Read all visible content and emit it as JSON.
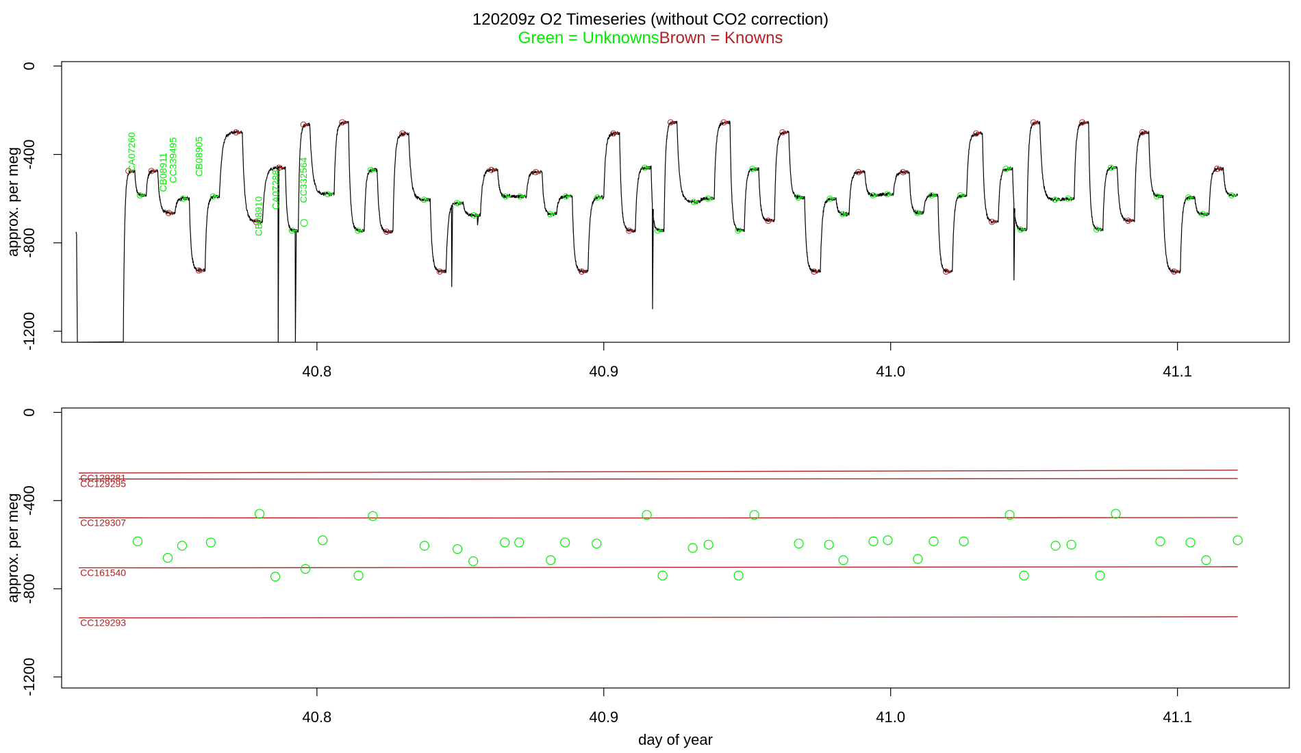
{
  "title": "120209z   O2 Timeseries (without CO2 correction)",
  "subtitle": {
    "unknowns": "Green = Unknowns",
    "knowns": "Brown = Knowns"
  },
  "colors": {
    "unknown": "#00ee00",
    "known": "#b22222",
    "trace": "#000000",
    "axis": "#000000"
  },
  "chart_data": [
    {
      "type": "line",
      "panel": "top",
      "ylabel": "approx. per meg",
      "xlabel": "",
      "xlim": [
        40.711,
        41.139
      ],
      "ylim": [
        -1250,
        20
      ],
      "xticks": [
        40.8,
        40.9,
        41.0,
        41.1
      ],
      "xtick_labels": [
        "40.8",
        "40.9",
        "41.0",
        "41.1"
      ],
      "yticks": [
        0,
        -400,
        -800,
        -1200
      ],
      "ytick_labels": [
        "0",
        "-400",
        "-800",
        "-1200"
      ],
      "segments": [
        {
          "t0": 40.7325,
          "t1": 40.7365,
          "level": -475,
          "kind": "known"
        },
        {
          "t0": 40.7365,
          "t1": 40.7405,
          "level": -585,
          "kind": "unknown"
        },
        {
          "t0": 40.7405,
          "t1": 40.7445,
          "level": -475,
          "kind": "known"
        },
        {
          "t0": 40.7445,
          "t1": 40.7505,
          "level": -665,
          "kind": "known"
        },
        {
          "t0": 40.7505,
          "t1": 40.7555,
          "level": -600,
          "kind": "unknown"
        },
        {
          "t0": 40.7555,
          "t1": 40.761,
          "level": -925,
          "kind": "known"
        },
        {
          "t0": 40.761,
          "t1": 40.766,
          "level": -590,
          "kind": "unknown"
        },
        {
          "t0": 40.766,
          "t1": 40.774,
          "level": -300,
          "kind": "known"
        },
        {
          "t0": 40.774,
          "t1": 40.781,
          "level": -705,
          "kind": "known"
        },
        {
          "t0": 40.781,
          "t1": 40.789,
          "level": -460,
          "kind": "known"
        },
        {
          "t0": 40.789,
          "t1": 40.7935,
          "level": -745,
          "kind": "unknown"
        },
        {
          "t0": 40.7935,
          "t1": 40.7975,
          "level": -265,
          "kind": "known"
        },
        {
          "t0": 40.7975,
          "t1": 40.806,
          "level": -580,
          "kind": "unknown"
        },
        {
          "t0": 40.806,
          "t1": 40.811,
          "level": -255,
          "kind": "known"
        },
        {
          "t0": 40.811,
          "t1": 40.8165,
          "level": -745,
          "kind": "unknown"
        },
        {
          "t0": 40.8165,
          "t1": 40.821,
          "level": -470,
          "kind": "unknown"
        },
        {
          "t0": 40.821,
          "t1": 40.8265,
          "level": -750,
          "kind": "known"
        },
        {
          "t0": 40.8265,
          "t1": 40.832,
          "level": -305,
          "kind": "known"
        },
        {
          "t0": 40.832,
          "t1": 40.8395,
          "level": -605,
          "kind": "unknown"
        },
        {
          "t0": 40.8395,
          "t1": 40.845,
          "level": -930,
          "kind": "known"
        },
        {
          "t0": 40.845,
          "t1": 40.851,
          "level": -620,
          "kind": "unknown"
        },
        {
          "t0": 40.851,
          "t1": 40.857,
          "level": -675,
          "kind": "unknown"
        },
        {
          "t0": 40.857,
          "t1": 40.863,
          "level": -470,
          "kind": "known"
        },
        {
          "t0": 40.863,
          "t1": 40.868,
          "level": -590,
          "kind": "unknown"
        },
        {
          "t0": 40.868,
          "t1": 40.873,
          "level": -590,
          "kind": "unknown"
        },
        {
          "t0": 40.873,
          "t1": 40.8785,
          "level": -480,
          "kind": "known"
        },
        {
          "t0": 40.8785,
          "t1": 40.8835,
          "level": -670,
          "kind": "unknown"
        },
        {
          "t0": 40.8835,
          "t1": 40.889,
          "level": -590,
          "kind": "unknown"
        },
        {
          "t0": 40.889,
          "t1": 40.8945,
          "level": -930,
          "kind": "known"
        },
        {
          "t0": 40.8945,
          "t1": 40.9,
          "level": -595,
          "kind": "unknown"
        },
        {
          "t0": 40.9,
          "t1": 40.9055,
          "level": -305,
          "kind": "known"
        },
        {
          "t0": 40.9055,
          "t1": 40.911,
          "level": -745,
          "kind": "known"
        },
        {
          "t0": 40.911,
          "t1": 40.9165,
          "level": -460,
          "kind": "unknown"
        },
        {
          "t0": 40.9165,
          "t1": 40.921,
          "level": -745,
          "kind": "unknown"
        },
        {
          "t0": 40.921,
          "t1": 40.9255,
          "level": -255,
          "kind": "known"
        },
        {
          "t0": 40.9255,
          "t1": 40.9335,
          "level": -615,
          "kind": "unknown"
        },
        {
          "t0": 40.9335,
          "t1": 40.9385,
          "level": -600,
          "kind": "unknown"
        },
        {
          "t0": 40.9385,
          "t1": 40.944,
          "level": -255,
          "kind": "known"
        },
        {
          "t0": 40.944,
          "t1": 40.949,
          "level": -745,
          "kind": "unknown"
        },
        {
          "t0": 40.949,
          "t1": 40.954,
          "level": -465,
          "kind": "unknown"
        },
        {
          "t0": 40.954,
          "t1": 40.9595,
          "level": -700,
          "kind": "known"
        },
        {
          "t0": 40.9595,
          "t1": 40.9645,
          "level": -300,
          "kind": "known"
        },
        {
          "t0": 40.9645,
          "t1": 40.97,
          "level": -595,
          "kind": "unknown"
        },
        {
          "t0": 40.97,
          "t1": 40.9755,
          "level": -930,
          "kind": "known"
        },
        {
          "t0": 40.9755,
          "t1": 40.981,
          "level": -600,
          "kind": "unknown"
        },
        {
          "t0": 40.981,
          "t1": 40.9855,
          "level": -670,
          "kind": "unknown"
        },
        {
          "t0": 40.9855,
          "t1": 40.991,
          "level": -480,
          "kind": "known"
        },
        {
          "t0": 40.991,
          "t1": 40.996,
          "level": -585,
          "kind": "unknown"
        },
        {
          "t0": 40.996,
          "t1": 41.001,
          "level": -580,
          "kind": "unknown"
        },
        {
          "t0": 41.001,
          "t1": 41.0065,
          "level": -480,
          "kind": "known"
        },
        {
          "t0": 41.0065,
          "t1": 41.0115,
          "level": -665,
          "kind": "unknown"
        },
        {
          "t0": 41.0115,
          "t1": 41.0165,
          "level": -585,
          "kind": "unknown"
        },
        {
          "t0": 41.0165,
          "t1": 41.0215,
          "level": -930,
          "kind": "known"
        },
        {
          "t0": 41.0215,
          "t1": 41.0265,
          "level": -585,
          "kind": "unknown"
        },
        {
          "t0": 41.0265,
          "t1": 41.032,
          "level": -305,
          "kind": "known"
        },
        {
          "t0": 41.032,
          "t1": 41.0375,
          "level": -705,
          "kind": "known"
        },
        {
          "t0": 41.0375,
          "t1": 41.0425,
          "level": -465,
          "kind": "unknown"
        },
        {
          "t0": 41.0425,
          "t1": 41.0475,
          "level": -740,
          "kind": "unknown"
        },
        {
          "t0": 41.0475,
          "t1": 41.052,
          "level": -255,
          "kind": "known"
        },
        {
          "t0": 41.052,
          "t1": 41.0595,
          "level": -605,
          "kind": "unknown"
        },
        {
          "t0": 41.0595,
          "t1": 41.064,
          "level": -600,
          "kind": "unknown"
        },
        {
          "t0": 41.064,
          "t1": 41.069,
          "level": -255,
          "kind": "known"
        },
        {
          "t0": 41.069,
          "t1": 41.074,
          "level": -740,
          "kind": "unknown"
        },
        {
          "t0": 41.074,
          "t1": 41.079,
          "level": -460,
          "kind": "unknown"
        },
        {
          "t0": 41.079,
          "t1": 41.085,
          "level": -700,
          "kind": "known"
        },
        {
          "t0": 41.085,
          "t1": 41.09,
          "level": -300,
          "kind": "known"
        },
        {
          "t0": 41.09,
          "t1": 41.095,
          "level": -590,
          "kind": "unknown"
        },
        {
          "t0": 41.095,
          "t1": 41.101,
          "level": -930,
          "kind": "known"
        },
        {
          "t0": 41.101,
          "t1": 41.106,
          "level": -595,
          "kind": "unknown"
        },
        {
          "t0": 41.106,
          "t1": 41.111,
          "level": -670,
          "kind": "unknown"
        },
        {
          "t0": 41.111,
          "t1": 41.116,
          "level": -465,
          "kind": "known"
        },
        {
          "t0": 41.116,
          "t1": 41.121,
          "level": -585,
          "kind": "unknown"
        }
      ],
      "spikes": [
        {
          "t": 40.7165,
          "level": -1250
        },
        {
          "t": 40.7865,
          "level": -1250
        },
        {
          "t": 40.7925,
          "level": -1250
        },
        {
          "t": 40.847,
          "level": -1000
        },
        {
          "t": 40.856,
          "level": -720
        },
        {
          "t": 40.917,
          "level": -1100
        },
        {
          "t": 41.043,
          "level": -970
        }
      ],
      "sample_labels": [
        {
          "text": "CA07260",
          "x": 40.7365,
          "y": -480
        },
        {
          "text": "CB08911",
          "x": 40.7475,
          "y": -570
        },
        {
          "text": "CC339495",
          "x": 40.751,
          "y": -530
        },
        {
          "text": "CB08905",
          "x": 40.76,
          "y": -500
        },
        {
          "text": "CB08910",
          "x": 40.7808,
          "y": -770
        },
        {
          "text": "CA07288",
          "x": 40.7868,
          "y": -650
        },
        {
          "text": "CC332564",
          "x": 40.7965,
          "y": -620
        }
      ],
      "sample_marker": {
        "x": 40.7955,
        "y": -710
      }
    },
    {
      "type": "scatter",
      "panel": "bottom",
      "ylabel": "approx. per meg",
      "xlabel": "day of year",
      "xlim": [
        40.711,
        41.139
      ],
      "ylim": [
        -1250,
        20
      ],
      "xticks": [
        40.8,
        40.9,
        41.0,
        41.1
      ],
      "xtick_labels": [
        "40.8",
        "40.9",
        "41.0",
        "41.1"
      ],
      "yticks": [
        0,
        -400,
        -800,
        -1200
      ],
      "ytick_labels": [
        "0",
        "-400",
        "-800",
        "-1200"
      ],
      "knowns": [
        {
          "name": "CC129281",
          "start": -275,
          "end": -262
        },
        {
          "name": "CC129295",
          "start": -302,
          "end": -300
        },
        {
          "name": "CC129307",
          "start": -478,
          "end": -477
        },
        {
          "name": "CC161540",
          "start": -705,
          "end": -700
        },
        {
          "name": "CC129293",
          "start": -932,
          "end": -927
        }
      ],
      "knowns_x": [
        40.717,
        41.121
      ],
      "unknowns": [
        {
          "x": 40.7375,
          "y": -585
        },
        {
          "x": 40.748,
          "y": -660
        },
        {
          "x": 40.753,
          "y": -605
        },
        {
          "x": 40.763,
          "y": -590
        },
        {
          "x": 40.78,
          "y": -460
        },
        {
          "x": 40.7855,
          "y": -745
        },
        {
          "x": 40.796,
          "y": -710
        },
        {
          "x": 40.802,
          "y": -580
        },
        {
          "x": 40.8145,
          "y": -740
        },
        {
          "x": 40.8195,
          "y": -470
        },
        {
          "x": 40.8375,
          "y": -605
        },
        {
          "x": 40.849,
          "y": -620
        },
        {
          "x": 40.8545,
          "y": -675
        },
        {
          "x": 40.8655,
          "y": -590
        },
        {
          "x": 40.8705,
          "y": -590
        },
        {
          "x": 40.8815,
          "y": -670
        },
        {
          "x": 40.8865,
          "y": -590
        },
        {
          "x": 40.8975,
          "y": -595
        },
        {
          "x": 40.915,
          "y": -465
        },
        {
          "x": 40.9205,
          "y": -740
        },
        {
          "x": 40.931,
          "y": -615
        },
        {
          "x": 40.9365,
          "y": -600
        },
        {
          "x": 40.947,
          "y": -740
        },
        {
          "x": 40.9525,
          "y": -465
        },
        {
          "x": 40.968,
          "y": -595
        },
        {
          "x": 40.9785,
          "y": -600
        },
        {
          "x": 40.9835,
          "y": -670
        },
        {
          "x": 40.994,
          "y": -585
        },
        {
          "x": 40.999,
          "y": -580
        },
        {
          "x": 41.0095,
          "y": -665
        },
        {
          "x": 41.015,
          "y": -585
        },
        {
          "x": 41.0255,
          "y": -585
        },
        {
          "x": 41.0415,
          "y": -465
        },
        {
          "x": 41.0465,
          "y": -740
        },
        {
          "x": 41.0575,
          "y": -605
        },
        {
          "x": 41.063,
          "y": -600
        },
        {
          "x": 41.073,
          "y": -740
        },
        {
          "x": 41.0785,
          "y": -460
        },
        {
          "x": 41.094,
          "y": -585
        },
        {
          "x": 41.1045,
          "y": -590
        },
        {
          "x": 41.11,
          "y": -670
        },
        {
          "x": 41.121,
          "y": -580
        }
      ]
    }
  ]
}
